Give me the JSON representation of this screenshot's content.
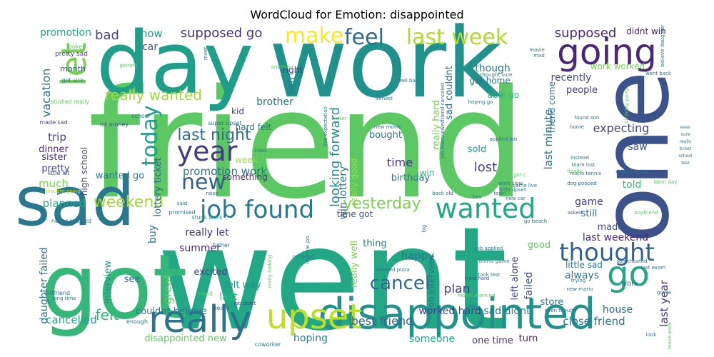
{
  "title": "WordCloud for Emotion: disappointed",
  "words": [
    {
      "text": "friend",
      "color": "#5cc863"
    },
    {
      "text": "went",
      "color": "#22a884"
    },
    {
      "text": "work",
      "color": "#21918c"
    },
    {
      "text": "day",
      "color": "#1f9e89"
    },
    {
      "text": "got",
      "color": "#35b779"
    },
    {
      "text": "one",
      "color": "#3b528b"
    },
    {
      "text": "sad",
      "color": "#2a788e"
    },
    {
      "text": "disappointed",
      "color": "#21918c"
    },
    {
      "text": "upset",
      "color": "#bddf26"
    },
    {
      "text": "really",
      "color": "#2c728e"
    },
    {
      "text": "going",
      "color": "#482878"
    },
    {
      "text": "job found",
      "color": "#2a788e"
    },
    {
      "text": "wanted",
      "color": "#22a884"
    },
    {
      "text": "go",
      "color": "#22a884"
    },
    {
      "text": "thought",
      "color": "#33638d"
    },
    {
      "text": "year",
      "color": "#443983"
    },
    {
      "text": "let",
      "color": "#7ad151"
    },
    {
      "text": "make",
      "color": "#fde725"
    },
    {
      "text": "feel",
      "color": "#31688e"
    },
    {
      "text": "last week",
      "color": "#addc30"
    },
    {
      "text": "today",
      "color": "#1f9e89"
    },
    {
      "text": "new",
      "color": "#33638d"
    },
    {
      "text": "weekend",
      "color": "#a0da39"
    },
    {
      "text": "yesterday",
      "color": "#7ad151"
    },
    {
      "text": "cancel",
      "color": "#31688e"
    },
    {
      "text": "last night",
      "color": "#2c728e"
    },
    {
      "text": "really wanted",
      "color": "#a0da39"
    },
    {
      "text": "supposed go",
      "color": "#46337e"
    },
    {
      "text": "supposed",
      "color": "#482878"
    },
    {
      "text": "looking forward",
      "color": "#21918c"
    },
    {
      "text": "promotion work",
      "color": "#2a788e"
    },
    {
      "text": "felt",
      "color": "#35b779"
    },
    {
      "text": "bad",
      "color": "#414487"
    },
    {
      "text": "know",
      "color": "#1f9e89"
    },
    {
      "text": "promotion",
      "color": "#20a486"
    },
    {
      "text": "car",
      "color": "#3b528b"
    },
    {
      "text": "vacation",
      "color": "#2c728e"
    },
    {
      "text": "cancelled",
      "color": "#1fa188"
    },
    {
      "text": "planned",
      "color": "#22a884"
    },
    {
      "text": "best friend",
      "color": "#33638d"
    },
    {
      "text": "hoping",
      "color": "#2a788e"
    },
    {
      "text": "sad didnt",
      "color": "#2a788e"
    },
    {
      "text": "worked hard",
      "color": "#414487"
    },
    {
      "text": "plan",
      "color": "#443983"
    },
    {
      "text": "lost",
      "color": "#414487"
    },
    {
      "text": "time",
      "color": "#46337e"
    },
    {
      "text": "happy",
      "color": "#2c728e"
    },
    {
      "text": "last minute",
      "color": "#2c728e"
    },
    {
      "text": "expecting",
      "color": "#414487"
    },
    {
      "text": "though",
      "color": "#2a788e"
    },
    {
      "text": "recently",
      "color": "#3e4989"
    },
    {
      "text": "game",
      "color": "#433e85"
    },
    {
      "text": "told",
      "color": "#35b779"
    },
    {
      "text": "saw",
      "color": "#3b528b"
    },
    {
      "text": "last weekend",
      "color": "#482878"
    },
    {
      "text": "last year",
      "color": "#46337e"
    },
    {
      "text": "always",
      "color": "#2a788e"
    },
    {
      "text": "house",
      "color": "#2c728e"
    },
    {
      "text": "close friend",
      "color": "#2c728e"
    },
    {
      "text": "didnt win",
      "color": "#48186a"
    },
    {
      "text": "work worked",
      "color": "#75d054"
    },
    {
      "text": "people",
      "color": "#433e85"
    },
    {
      "text": "able go",
      "color": "#35b779"
    },
    {
      "text": "got home",
      "color": "#2c728e"
    },
    {
      "text": "win lottery",
      "color": "#31688e"
    },
    {
      "text": "brother",
      "color": "#2c728e"
    },
    {
      "text": "trip",
      "color": "#414487"
    },
    {
      "text": "dinner",
      "color": "#482878"
    },
    {
      "text": "sister",
      "color": "#46337e"
    },
    {
      "text": "pretty",
      "color": "#414487"
    },
    {
      "text": "much",
      "color": "#7ad151"
    },
    {
      "text": "high school",
      "color": "#414487"
    },
    {
      "text": "wanted go",
      "color": "#2a788e"
    },
    {
      "text": "lottery ticket",
      "color": "#33638d"
    },
    {
      "text": "felt way",
      "color": "#21918c"
    },
    {
      "text": "excited",
      "color": "#414487"
    },
    {
      "text": "really let",
      "color": "#46337e"
    },
    {
      "text": "summer",
      "color": "#472d7b"
    },
    {
      "text": "last",
      "color": "#35b779"
    },
    {
      "text": "great",
      "color": "#5ec962"
    },
    {
      "text": "interview",
      "color": "#21918c"
    },
    {
      "text": "buy",
      "color": "#2a788e"
    },
    {
      "text": "see",
      "color": "#2c728e"
    },
    {
      "text": "daughter failed",
      "color": "#2c728e"
    },
    {
      "text": "couldnt believe",
      "color": "#2a788e"
    },
    {
      "text": "disappointed new",
      "color": "#5ec962"
    },
    {
      "text": "someone",
      "color": "#22a884"
    },
    {
      "text": "one time",
      "color": "#46337e"
    },
    {
      "text": "turn",
      "color": "#481f70"
    },
    {
      "text": "really well",
      "color": "#7ad151"
    },
    {
      "text": "job interview",
      "color": "#2c728e"
    },
    {
      "text": "bought",
      "color": "#2a788e"
    },
    {
      "text": "birthday",
      "color": "#2c728e"
    },
    {
      "text": "sold",
      "color": "#1f9e89"
    },
    {
      "text": "really hard",
      "color": "#75d054"
    },
    {
      "text": "left alone",
      "color": "#414487"
    },
    {
      "text": "failed",
      "color": "#3b528b"
    },
    {
      "text": "good",
      "color": "#5ec962"
    },
    {
      "text": "store",
      "color": "#2a788e"
    },
    {
      "text": "still",
      "color": "#31688e"
    },
    {
      "text": "made",
      "color": "#3b528b"
    },
    {
      "text": "thing",
      "color": "#2a788e"
    },
    {
      "text": "hard felt",
      "color": "#2c728e"
    },
    {
      "text": "week",
      "color": "#a0da39"
    },
    {
      "text": "kid",
      "color": "#414487"
    },
    {
      "text": "something",
      "color": "#482878"
    },
    {
      "text": "month",
      "color": "#3b528b"
    },
    {
      "text": "right",
      "color": "#443983"
    },
    {
      "text": "son",
      "color": "#2a788e"
    },
    {
      "text": "win",
      "color": "#35b779"
    },
    {
      "text": "sad couldnt",
      "color": "#2c728e"
    },
    {
      "text": "friend come",
      "color": "#2c728e"
    },
    {
      "text": "little sad",
      "color": "#2c728e"
    },
    {
      "text": "work",
      "color": "#2c728e"
    },
    {
      "text": "really good",
      "color": "#9fda3a"
    },
    {
      "text": "time got",
      "color": "#3b528b"
    },
    {
      "text": "looked",
      "color": "#5ec962"
    },
    {
      "text": "pretty sad",
      "color": "#414487"
    },
    {
      "text": "got sick",
      "color": "#2c728e"
    },
    {
      "text": "studied really",
      "color": "#5ec962"
    },
    {
      "text": "made sad",
      "color": "#414487"
    },
    {
      "text": "little let",
      "color": "#414487"
    },
    {
      "text": "thought going",
      "color": "#bddf26"
    },
    {
      "text": "lot money",
      "color": "#3b528b"
    },
    {
      "text": "school",
      "color": "#2a788e"
    },
    {
      "text": "super upset",
      "color": "#2c728e"
    },
    {
      "text": "ordered",
      "color": "#2a788e"
    },
    {
      "text": "promised",
      "color": "#2c728e"
    },
    {
      "text": "stuck work",
      "color": "#1f9e89"
    },
    {
      "text": "never showed",
      "color": "#2c728e"
    },
    {
      "text": "father",
      "color": "#2a788e"
    },
    {
      "text": "need",
      "color": "#5ec962"
    },
    {
      "text": "heard",
      "color": "#2c728e"
    },
    {
      "text": "enough",
      "color": "#2c728e"
    },
    {
      "text": "girlfriend",
      "color": "#2c728e"
    },
    {
      "text": "long time",
      "color": "#2c728e"
    },
    {
      "text": "job didnt",
      "color": "#414487"
    },
    {
      "text": "really looking",
      "color": "#5ec962"
    },
    {
      "text": "coworker",
      "color": "#2a788e"
    },
    {
      "text": "ordered pizza",
      "color": "#2c728e"
    },
    {
      "text": "intervie job",
      "color": "#2a788e"
    },
    {
      "text": "tried hard",
      "color": "#3b528b"
    },
    {
      "text": "took test",
      "color": "#2c728e"
    },
    {
      "text": "tennis game",
      "color": "#2a788e"
    },
    {
      "text": "job applied",
      "color": "#2c728e"
    },
    {
      "text": "applied job",
      "color": "#2c728e"
    },
    {
      "text": "new movie",
      "color": "#2c728e"
    },
    {
      "text": "live expectation",
      "color": "#2c728e"
    },
    {
      "text": "job interviewed",
      "color": "#2c728e"
    },
    {
      "text": "almost",
      "color": "#2c728e"
    },
    {
      "text": "feel bad",
      "color": "#2c728e"
    },
    {
      "text": "friend canceled",
      "color": "#2c728e"
    },
    {
      "text": "hoping go",
      "color": "#2c728e"
    },
    {
      "text": "bos",
      "color": "#2c728e"
    },
    {
      "text": "back old",
      "color": "#2c728e"
    },
    {
      "text": "new car",
      "color": "#2c728e"
    },
    {
      "text": "asked",
      "color": "#2c728e"
    },
    {
      "text": "boyfriend",
      "color": "#5ec962"
    },
    {
      "text": "labor day",
      "color": "#5ec962"
    },
    {
      "text": "really hoping",
      "color": "#2c728e"
    },
    {
      "text": "dog pooped",
      "color": "#2c728e"
    },
    {
      "text": "mario tennis",
      "color": "#2c728e"
    },
    {
      "text": "team lost",
      "color": "#2c728e"
    },
    {
      "text": "instead",
      "color": "#2c728e"
    },
    {
      "text": "found son",
      "color": "#2c728e"
    },
    {
      "text": "birthday party",
      "color": "#5ec962"
    },
    {
      "text": "went back",
      "color": "#2c728e"
    },
    {
      "text": "movie",
      "color": "#2c728e"
    },
    {
      "text": "mad",
      "color": "#2c728e"
    },
    {
      "text": "believe daughter",
      "color": "#2c728e"
    },
    {
      "text": "grade",
      "color": "#2c728e"
    },
    {
      "text": "last exam",
      "color": "#2c728e"
    },
    {
      "text": "son cheated",
      "color": "#2c728e"
    },
    {
      "text": "trying",
      "color": "#2c728e"
    },
    {
      "text": "new mario",
      "color": "#2c728e"
    },
    {
      "text": "even though",
      "color": "#2c728e"
    },
    {
      "text": "look",
      "color": "#2c728e"
    },
    {
      "text": "leave work",
      "color": "#5ec962"
    },
    {
      "text": "meet",
      "color": "#2c728e"
    },
    {
      "text": "raise",
      "color": "#2c728e"
    },
    {
      "text": "said",
      "color": "#2c728e"
    },
    {
      "text": "anything",
      "color": "#5ec962"
    },
    {
      "text": "getting",
      "color": "#5ec962"
    },
    {
      "text": "work slow",
      "color": "#2c728e"
    },
    {
      "text": "little upset",
      "color": "#2c728e"
    },
    {
      "text": "game live",
      "color": "#2c728e"
    },
    {
      "text": "finally",
      "color": "#5ec962"
    },
    {
      "text": "town",
      "color": "#2c728e"
    },
    {
      "text": "got c",
      "color": "#5ec962"
    },
    {
      "text": "buy new",
      "color": "#5ec962"
    },
    {
      "text": "class",
      "color": "#2c728e"
    },
    {
      "text": "better",
      "color": "#5ec962"
    },
    {
      "text": "big",
      "color": "#2c728e"
    },
    {
      "text": "go beach",
      "color": "#2c728e"
    },
    {
      "text": "movie morning",
      "color": "#5ec962"
    },
    {
      "text": "home",
      "color": "#2c728e"
    },
    {
      "text": "thought sure",
      "color": "#2c728e"
    },
    {
      "text": "even",
      "color": "#2c728e"
    },
    {
      "text": "sure",
      "color": "#2c728e"
    },
    {
      "text": "really",
      "color": "#2c728e"
    },
    {
      "text": "ticket",
      "color": "#2c728e"
    },
    {
      "text": "school",
      "color": "#2c728e"
    },
    {
      "text": "test",
      "color": "#2c728e"
    }
  ]
}
